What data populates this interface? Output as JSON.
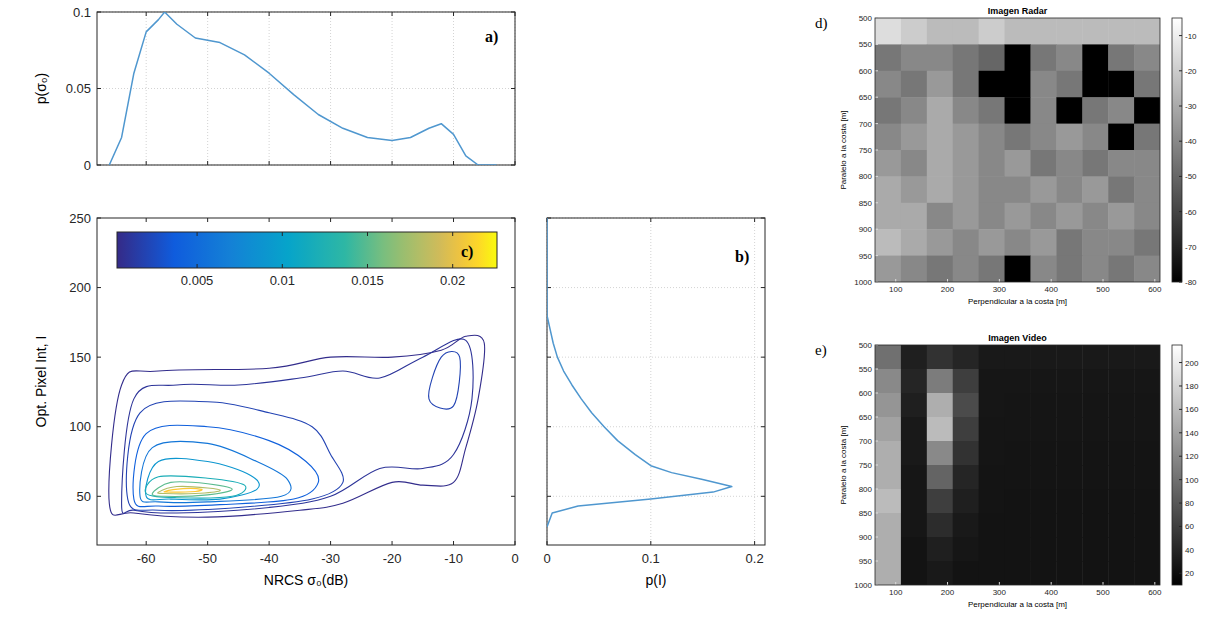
{
  "chart_data": [
    {
      "type": "line",
      "label": "a)",
      "ylabel": "p(σ₀)",
      "x": [
        -66,
        -64,
        -62,
        -60,
        -58,
        -57,
        -55,
        -52,
        -48,
        -44,
        -40,
        -36,
        -32,
        -28,
        -24,
        -20,
        -17,
        -14,
        -12,
        -10,
        -8,
        -6,
        -3
      ],
      "values": [
        0,
        0.018,
        0.06,
        0.087,
        0.095,
        0.1,
        0.092,
        0.083,
        0.08,
        0.072,
        0.06,
        0.046,
        0.033,
        0.024,
        0.018,
        0.016,
        0.018,
        0.024,
        0.027,
        0.02,
        0.006,
        0,
        0
      ],
      "color": "#4f97cf",
      "xlim": [
        -68,
        0
      ],
      "ylim": [
        0,
        0.1
      ],
      "xticks": [
        -60,
        -50,
        -40,
        -30,
        -20,
        -10,
        0
      ],
      "yticks": [
        0,
        0.05,
        0.1
      ],
      "grid": true,
      "tick_labels": "y"
    },
    {
      "type": "line",
      "orientation": "horizontal",
      "label": "b)",
      "xlabel": "p(I)",
      "x": [
        28,
        38,
        43,
        48,
        53,
        57,
        62,
        67,
        72,
        80,
        90,
        100,
        110,
        120,
        130,
        140,
        150,
        160,
        170,
        180,
        250
      ],
      "values": [
        0,
        0.005,
        0.03,
        0.1,
        0.16,
        0.178,
        0.15,
        0.12,
        0.1,
        0.085,
        0.068,
        0.055,
        0.043,
        0.033,
        0.024,
        0.016,
        0.01,
        0.006,
        0.003,
        0,
        0
      ],
      "color": "#4f97cf",
      "xlim": [
        0,
        0.21
      ],
      "ylim": [
        15,
        250
      ],
      "xticks": [
        0,
        0.1,
        0.2
      ],
      "yticks": [
        50,
        100,
        150,
        200,
        250
      ],
      "grid": true,
      "tick_labels": "x"
    },
    {
      "type": "contour",
      "label": "c)",
      "xlabel": "NRCS σ₀(dB)",
      "ylabel": "Opt. Pixel Int, I",
      "xlim": [
        -68,
        0
      ],
      "ylim": [
        15,
        250
      ],
      "xticks": [
        -60,
        -50,
        -40,
        -30,
        -20,
        -10,
        0
      ],
      "yticks": [
        50,
        100,
        150,
        200,
        250
      ],
      "colorbar_range": [
        0.0003,
        0.0226
      ],
      "colorbar_ticks": [
        0.005,
        0.01,
        0.015,
        0.02
      ],
      "contours": [
        {
          "level": 0.0005,
          "x": [
            -66,
            -64,
            -58,
            -40,
            -30,
            -20,
            -12,
            -8,
            -5,
            -6,
            -8,
            -10,
            -15,
            -20,
            -28,
            -35,
            -50,
            -62
          ],
          "y": [
            45,
            130,
            140,
            142,
            150,
            150,
            155,
            165,
            160,
            120,
            85,
            60,
            58,
            60,
            45,
            40,
            35,
            38
          ]
        },
        {
          "level": 0.001,
          "x": [
            -64,
            -62,
            -55,
            -45,
            -35,
            -28,
            -22,
            -15,
            -8,
            -7,
            -10,
            -15,
            -22,
            -30,
            -40,
            -55,
            -62
          ],
          "y": [
            45,
            120,
            130,
            130,
            135,
            140,
            135,
            150,
            162,
            120,
            80,
            70,
            70,
            50,
            42,
            38,
            40
          ]
        },
        {
          "level": 0.002,
          "x": [
            -63,
            -61,
            -50,
            -40,
            -33,
            -30,
            -28,
            -33,
            -45,
            -58
          ],
          "y": [
            48,
            110,
            118,
            110,
            100,
            80,
            60,
            48,
            42,
            40
          ]
        },
        {
          "level": 0.002,
          "x": [
            -14,
            -12,
            -9,
            -10
          ],
          "y": [
            120,
            150,
            150,
            115
          ]
        },
        {
          "level": 0.004,
          "x": [
            -62,
            -60,
            -50,
            -40,
            -34,
            -32,
            -36,
            -48,
            -58
          ],
          "y": [
            48,
            95,
            100,
            90,
            75,
            60,
            48,
            44,
            43
          ]
        },
        {
          "level": 0.006,
          "x": [
            -61,
            -59,
            -50,
            -42,
            -37,
            -38,
            -50,
            -58
          ],
          "y": [
            50,
            85,
            88,
            75,
            62,
            50,
            46,
            46
          ]
        },
        {
          "level": 0.009,
          "x": [
            -60,
            -58,
            -50,
            -43,
            -42,
            -48,
            -56
          ],
          "y": [
            50,
            75,
            75,
            65,
            55,
            48,
            48
          ]
        },
        {
          "level": 0.012,
          "x": [
            -60,
            -58,
            -50,
            -44,
            -46,
            -55
          ],
          "y": [
            52,
            64,
            63,
            58,
            50,
            49
          ]
        },
        {
          "level": 0.015,
          "x": [
            -59,
            -56,
            -50,
            -46,
            -50,
            -57
          ],
          "y": [
            52,
            60,
            59,
            55,
            51,
            50
          ]
        },
        {
          "level": 0.018,
          "x": [
            -58,
            -55,
            -50,
            -48,
            -52,
            -57
          ],
          "y": [
            53,
            57,
            56,
            54,
            52,
            52
          ]
        },
        {
          "level": 0.021,
          "x": [
            -57,
            -54,
            -51,
            -52,
            -56
          ],
          "y": [
            53.5,
            55.5,
            55,
            53.5,
            53
          ]
        }
      ]
    },
    {
      "type": "heatmap",
      "label": "d)",
      "title": "Imagen Radar",
      "xlabel": "Perpendicular a la costa [m]",
      "ylabel": "Paralelo a la costa [m]",
      "xlim": [
        60,
        610
      ],
      "ylim": [
        500,
        1000
      ],
      "xticks": [
        100,
        200,
        300,
        400,
        500,
        600
      ],
      "yticks": [
        500,
        550,
        600,
        650,
        700,
        750,
        800,
        850,
        900,
        950,
        1000
      ],
      "x_edges": [
        60,
        110,
        160,
        210,
        260,
        310,
        360,
        410,
        460,
        510,
        560,
        610
      ],
      "y_edges": [
        500,
        550,
        600,
        650,
        700,
        750,
        800,
        850,
        900,
        950,
        1000
      ],
      "cells": [
        [
          -15,
          -20,
          -25,
          -25,
          -20,
          -25,
          -25,
          -25,
          -25,
          -25,
          -25
        ],
        [
          -45,
          -40,
          -40,
          -45,
          -50,
          -80,
          -45,
          -40,
          -80,
          -45,
          -40
        ],
        [
          -40,
          -45,
          -35,
          -45,
          -80,
          -80,
          -40,
          -45,
          -80,
          -80,
          -45
        ],
        [
          -45,
          -40,
          -30,
          -40,
          -45,
          -80,
          -40,
          -80,
          -45,
          -40,
          -80
        ],
        [
          -40,
          -35,
          -30,
          -35,
          -40,
          -45,
          -40,
          -35,
          -40,
          -80,
          -45
        ],
        [
          -35,
          -40,
          -30,
          -35,
          -40,
          -35,
          -45,
          -40,
          -45,
          -40,
          -40
        ],
        [
          -30,
          -35,
          -30,
          -35,
          -40,
          -40,
          -35,
          -40,
          -35,
          -45,
          -40
        ],
        [
          -30,
          -30,
          -40,
          -35,
          -40,
          -35,
          -40,
          -35,
          -40,
          -35,
          -40
        ],
        [
          -25,
          -30,
          -35,
          -40,
          -35,
          -40,
          -35,
          -45,
          -40,
          -40,
          -45
        ],
        [
          -35,
          -40,
          -45,
          -40,
          -45,
          -80,
          -40,
          -45,
          -40,
          -45,
          -40
        ]
      ],
      "colorbar_range": [
        -80,
        -5
      ],
      "colorbar_ticks": [
        -10,
        -20,
        -30,
        -40,
        -50,
        -60,
        -70,
        -80
      ]
    },
    {
      "type": "heatmap",
      "label": "e)",
      "title": "Imagen Video",
      "xlabel": "Perpendicular a la costa [m]",
      "ylabel": "Paralelo a la costa [m]",
      "xlim": [
        60,
        610
      ],
      "ylim": [
        500,
        1000
      ],
      "xticks": [
        100,
        200,
        300,
        400,
        500,
        600
      ],
      "yticks": [
        500,
        550,
        600,
        650,
        700,
        750,
        800,
        850,
        900,
        950,
        1000
      ],
      "x_edges": [
        60,
        110,
        160,
        210,
        260,
        310,
        360,
        410,
        460,
        510,
        560,
        610
      ],
      "y_edges": [
        500,
        550,
        600,
        650,
        700,
        750,
        800,
        850,
        900,
        950,
        1000
      ],
      "cells": [
        [
          100,
          35,
          50,
          40,
          30,
          30,
          30,
          30,
          30,
          30,
          30
        ],
        [
          120,
          40,
          110,
          60,
          28,
          28,
          28,
          28,
          28,
          28,
          28
        ],
        [
          130,
          35,
          150,
          70,
          28,
          27,
          27,
          27,
          27,
          27,
          27
        ],
        [
          140,
          30,
          160,
          60,
          27,
          27,
          27,
          27,
          27,
          27,
          27
        ],
        [
          150,
          30,
          120,
          50,
          27,
          26,
          26,
          26,
          26,
          26,
          26
        ],
        [
          150,
          28,
          90,
          40,
          26,
          26,
          26,
          26,
          26,
          26,
          26
        ],
        [
          160,
          28,
          60,
          35,
          26,
          25,
          25,
          25,
          25,
          25,
          25
        ],
        [
          150,
          28,
          45,
          30,
          25,
          25,
          25,
          25,
          25,
          25,
          25
        ],
        [
          150,
          25,
          35,
          28,
          25,
          25,
          25,
          25,
          25,
          25,
          25
        ],
        [
          150,
          25,
          30,
          25,
          25,
          25,
          25,
          25,
          25,
          25,
          25
        ]
      ],
      "colorbar_range": [
        10,
        215
      ],
      "colorbar_ticks": [
        20,
        40,
        60,
        80,
        100,
        120,
        140,
        160,
        180,
        200
      ]
    }
  ]
}
